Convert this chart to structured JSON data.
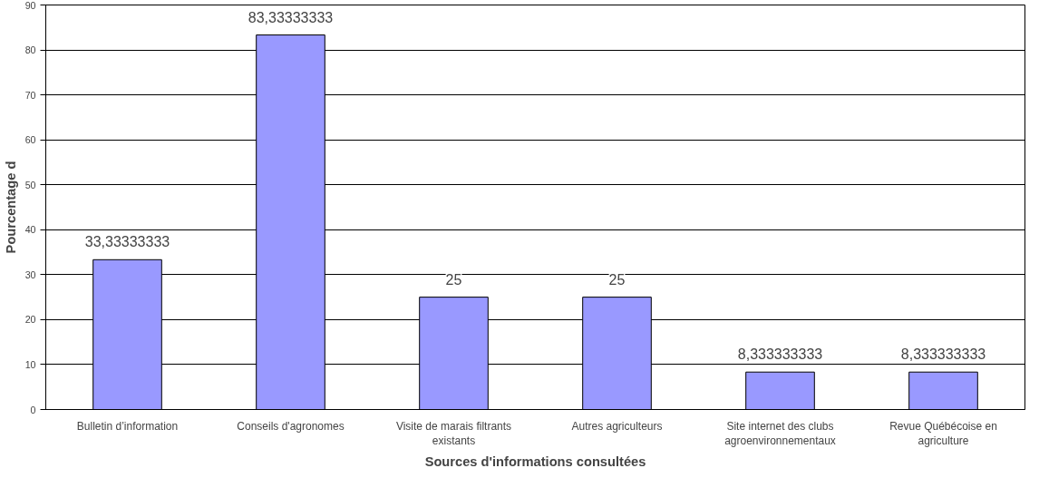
{
  "chart_data": {
    "type": "bar",
    "xlabel": "Sources d'informations consultées",
    "ylabel": "Pourcentage d",
    "categories": [
      "Bulletin d’information",
      "Conseils d'agronomes",
      "Visite de marais filtrants\nexistants",
      "Autres agriculteurs",
      "Site internet des clubs\nagroenvironnementaux",
      "Revue Québécoise en\nagriculture"
    ],
    "values": [
      33.33333333,
      83.33333333,
      25,
      25,
      8.333333333,
      8.333333333
    ],
    "value_labels": [
      "33,33333333",
      "83,33333333",
      "25",
      "25",
      "8,333333333",
      "8,333333333"
    ],
    "color": "#9999ff",
    "ylim": [
      0,
      90
    ],
    "yticks": [
      0,
      10,
      20,
      30,
      40,
      50,
      60,
      70,
      80,
      90
    ],
    "grid": "y"
  }
}
